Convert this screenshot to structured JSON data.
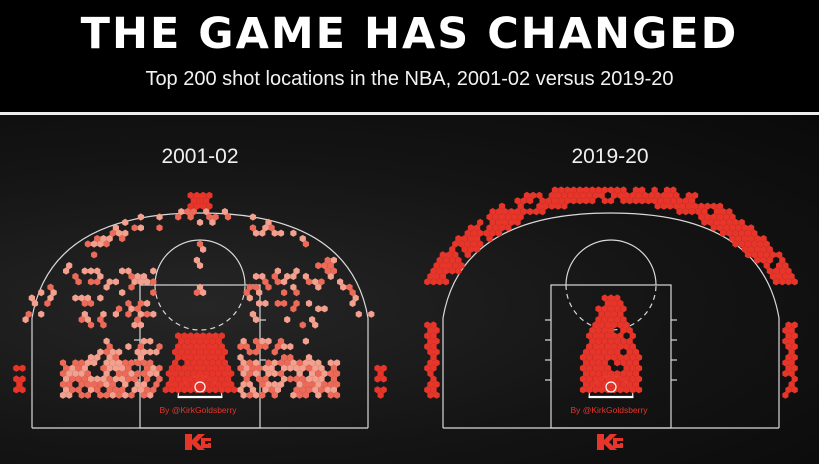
{
  "header": {
    "title": "THE GAME HAS CHANGED",
    "subtitle": "Top 200 shot locations in the NBA, 2001-02 versus 2019-20"
  },
  "colors": {
    "background": "#000000",
    "court_lines": "#d9d9d9",
    "hex_core": "#e8352a",
    "hex_edge": "#f4a08f",
    "credit": "#e8352a"
  },
  "courts": [
    {
      "id": "left",
      "season": "2001-02",
      "credit": "By @KirkGoldsberry",
      "logo_icon": "kg-logo-icon"
    },
    {
      "id": "right",
      "season": "2019-20",
      "credit": "By @KirkGoldsberry",
      "logo_icon": "kg-logo-icon"
    }
  ]
}
